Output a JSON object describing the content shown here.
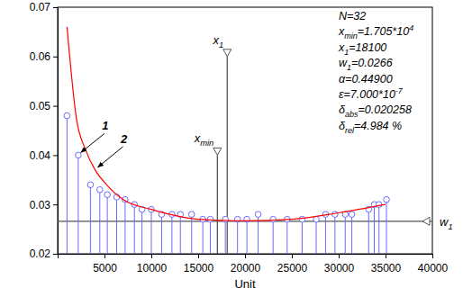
{
  "chart_data": {
    "type": "scatter",
    "x_label": "Unit",
    "xlim": [
      0,
      40000
    ],
    "xticks": [
      5000,
      10000,
      15000,
      20000,
      25000,
      30000,
      35000,
      40000
    ],
    "ylim": [
      0.02,
      0.07
    ],
    "yticks": [
      0.02,
      0.03,
      0.04,
      0.05,
      0.06,
      0.07
    ],
    "series": [
      {
        "label": "1",
        "type": "stem",
        "color": "#6a6aff",
        "marker": "circle",
        "x": [
          1000,
          2200,
          3500,
          4500,
          5300,
          6300,
          7200,
          8200,
          9000,
          10000,
          11100,
          12200,
          13100,
          14300,
          15500,
          16300,
          17900,
          19200,
          20200,
          21400,
          23000,
          24500,
          26100,
          27600,
          28600,
          29600,
          30700,
          31400,
          33200,
          33800,
          34300,
          35100
        ],
        "values": [
          0.048,
          0.04,
          0.034,
          0.033,
          0.032,
          0.0315,
          0.031,
          0.03,
          0.029,
          0.029,
          0.028,
          0.028,
          0.028,
          0.028,
          0.027,
          0.027,
          0.027,
          0.027,
          0.027,
          0.028,
          0.027,
          0.027,
          0.027,
          0.027,
          0.028,
          0.028,
          0.028,
          0.028,
          0.029,
          0.03,
          0.03,
          0.031
        ]
      },
      {
        "label": "2",
        "type": "line",
        "color": "#ff0000",
        "x": [
          1000,
          2000,
          3000,
          4000,
          5000,
          7000,
          10000,
          15000,
          20000,
          25000,
          30000,
          35000
        ],
        "values": [
          0.066,
          0.0475,
          0.041,
          0.037,
          0.0345,
          0.031,
          0.029,
          0.027,
          0.0267,
          0.027,
          0.0283,
          0.03
        ]
      }
    ],
    "reference_lines": [
      {
        "label": [
          {
            "text": "x"
          },
          {
            "text": "min",
            "sub": true
          }
        ],
        "x": 17050,
        "y": 0.04,
        "marker": "triangle-down",
        "color": "#555555"
      },
      {
        "label": [
          {
            "text": "x"
          },
          {
            "text": "1",
            "sub": true
          }
        ],
        "x": 18100,
        "y": 0.06,
        "marker": "triangle-down",
        "color": "#555555"
      },
      {
        "label": [
          {
            "text": "w"
          },
          {
            "text": "1",
            "sub": true
          }
        ],
        "y": 0.0266,
        "marker": "triangle-left",
        "color": "#555555"
      }
    ],
    "text_block": [
      [
        {
          "text": "N=32"
        }
      ],
      [
        {
          "text": "x"
        },
        {
          "text": "min",
          "sub": true
        },
        {
          "text": "=1.705*10"
        },
        {
          "text": "4",
          "sup": true
        }
      ],
      [
        {
          "text": "x"
        },
        {
          "text": "1",
          "sub": true
        },
        {
          "text": "=18100"
        }
      ],
      [
        {
          "text": "w"
        },
        {
          "text": "1",
          "sub": true
        },
        {
          "text": "=0.0266"
        }
      ],
      [
        {
          "text": "α=0.44900"
        }
      ],
      [
        {
          "text": "ε=7.000*10"
        },
        {
          "text": "-7",
          "sup": true
        }
      ],
      [
        {
          "text": "δ"
        },
        {
          "text": "abs",
          "sub": true
        },
        {
          "text": "=0.020258"
        }
      ],
      [
        {
          "text": "δ"
        },
        {
          "text": "rel",
          "sub": true
        },
        {
          "text": "=4.984 %"
        }
      ]
    ]
  }
}
